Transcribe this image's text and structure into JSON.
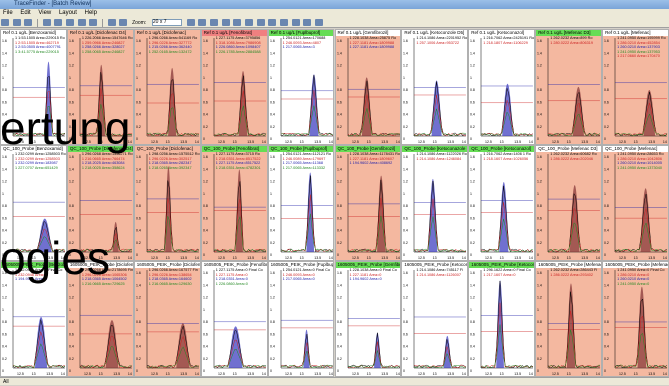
{
  "window": {
    "title": "TraceFinder - [Batch Review]"
  },
  "menu": [
    "File",
    "Edit",
    "View",
    "Layout",
    "Help"
  ],
  "toolbar": {
    "zoom_label": "Zoom:",
    "zoom_value": "20 x 7"
  },
  "overlay": {
    "line1": "ertung",
    "line2": "ogies"
  },
  "rows": [
    {
      "cells": [
        {
          "header": "Ref 0.1 ug/L [Benzoxamid]",
          "hdr_color": "#ffffff",
          "bg": "#ffffff",
          "info": [
            "1 1:53.1505 Area=229015 Ro",
            "1 2:53.1505 Area=462719",
            "1 2:53.0505 Area=4007791",
            "1 3:41.5775 Area=229015"
          ]
        },
        {
          "header": "Ref 0.1 ug/L [Diclofenac D4]",
          "hdr_color": "#f4b8a0",
          "bg": "#f4b8a0",
          "info": [
            "1 226.2066 Area=1547646 Ro",
            "1 259.0966 Area=246827",
            "1 258.0266 Area=328027",
            "1 258.0065 Area=246827"
          ]
        },
        {
          "header": "Ref 0.1 ug/L [Diclofenac]",
          "hdr_color": "#f4b8a0",
          "bg": "#f4b8a0",
          "info": [
            "1 296.0266 Area=541169 Ro",
            "1 296.0226 Area=327772",
            "1 215.0266 Area=362440",
            "1 252.0165 Area=132472"
          ]
        },
        {
          "header": "Ref 0.1 ug/L [Fenofibrat]",
          "hdr_color": "#f08080",
          "bg": "#f4b8a0",
          "info": [
            "1 227.1175 Area=3795856",
            "1 318.1086 Area=7986908",
            "1 226.0860 Area=1098407",
            "1 226.1785 Area=2884588"
          ]
        },
        {
          "header": "Ref 0.1 ug/L [Fuplbuprof]",
          "hdr_color": "#66dd55",
          "bg": "#ffffff",
          "info": [
            "1 254.0121 Area=170688",
            "1 246.0093 Area=4807",
            "1 217.0065 Area=3"
          ]
        },
        {
          "header": "Ref 0.1 ug/L [Gemfibrozil]",
          "hdr_color": "#ffffff",
          "bg": "#f4b8a0",
          "info": [
            "1 228.1038 Area=25875 Ro",
            "1 227.1181 Area=1809988",
            "1 227.1181 Area=1809988"
          ]
        },
        {
          "header": "Ref 0.1 ug/L [Ketoconzole D5]",
          "hdr_color": "#ffffff",
          "bg": "#ffffff",
          "info": [
            "1 214.1086 Area=2201952 Ro",
            "1 257.1006 Area=953722"
          ]
        },
        {
          "header": "Ref 0.1 ug/L [Ketoconazol]",
          "hdr_color": "#ffffff",
          "bg": "#ffffff",
          "info": [
            "1 216.7062 Area=2425191 Ro",
            "1 218.1807 Area=1106229"
          ]
        },
        {
          "header": "Ref 0.1 ug/L [Mefenac D3]",
          "hdr_color": "#66dd55",
          "bg": "#f4b8a0",
          "info": [
            "1 262.0232 Area=899 Ro",
            "1 280.0222 Area=806319"
          ]
        },
        {
          "header": "Ref 0.1 ug/L [Mefenac]",
          "hdr_color": "#ffffff",
          "bg": "#f4b8a0",
          "info": [
            "1 241.0950 Area=195999 Ro",
            "1 286.0210 Area=452854",
            "1 260.0210 Area=137903",
            "1 241.0950 Area=137953",
            "1 217.0660 Area=170470"
          ]
        }
      ]
    },
    {
      "cells": [
        {
          "header": "QC_100_Probe [Benzoxamid]",
          "hdr_color": "#ffffff",
          "bg": "#ffffff",
          "info": [
            "1 232.0299 Area=1258503 Ro",
            "1 232.0299 Area=1258503",
            "1 232.0299 Area=183987",
            "1 227.0707 Area=651429"
          ]
        },
        {
          "header": "QC_100_Probe [Diclofenac D4]",
          "hdr_color": "#66dd55",
          "bg": "#f4b8a0",
          "info": [
            "1 296.0268 Area=1556271 Ro",
            "1 216.0665 Area=766474",
            "1 218.2025 Area=463084",
            "1 218.0025 Area=358624"
          ]
        },
        {
          "header": "QC_100_Probe [Diclofenac]",
          "hdr_color": "#f4b8a0",
          "bg": "#f4b8a0",
          "info": [
            "1 298.0256 Area=1575512 Ro",
            "1 296.0226 Area=302517",
            "1 218.0365 Area=282347",
            "1 218.0265 Area=392347"
          ]
        },
        {
          "header": "QC_100_Probe [Fenofibrat]",
          "hdr_color": "#66dd55",
          "bg": "#f4b8a0",
          "info": [
            "1 227.1175 Area=3715 Ro",
            "1 218.0351 Area=8517522",
            "1 227.1175 Area=8517522",
            "1 218.0351 Area=4782301"
          ]
        },
        {
          "header": "QC_100_Probe [Fuplbuprof]",
          "hdr_color": "#66dd55",
          "bg": "#ffffff",
          "info": [
            "1 254.0121 Area=112121 Ro",
            "1 246.0089 Area=179697",
            "1 217.0065 Area=11368",
            "1 217.0065 Area=113332"
          ]
        },
        {
          "header": "QC_100_Probe [Gemfibrozil]",
          "hdr_color": "#66dd55",
          "bg": "#f4b8a0",
          "info": [
            "1 228.1038 Area=1178431 Ro",
            "1 227.1181 Area=1809607",
            "1 194.9602 Area=408692"
          ]
        },
        {
          "header": "QC_100_Probe [Ketoconazole D5]",
          "hdr_color": "#66dd55",
          "bg": "#ffffff",
          "info": [
            "1 214.1086 Area=1122026 Ro",
            "1 214.1086 Area=1246084"
          ]
        },
        {
          "header": "QC_100_Probe [Ketoconazol]",
          "hdr_color": "#66dd55",
          "bg": "#ffffff",
          "info": [
            "1 216.7062 Area=1406 1 Ro",
            "1 218.1607 Area=1026056"
          ]
        },
        {
          "header": "QC_100_Probe [Mefenac D3]",
          "hdr_color": "#ffffff",
          "bg": "#f4b8a0",
          "info": [
            "1 262.0232 Area=60682 Ro",
            "1 286.0222 Area=202046"
          ]
        },
        {
          "header": "QC_100_Probe [Mefenac]",
          "hdr_color": "#ffffff",
          "bg": "#f4b8a0",
          "info": [
            "1 241.0950 Area=28653 Ro",
            "1 286.0210 Area=1042806",
            "1 260.0210 Area=1014005",
            "1 241.0950 Area=1373040"
          ]
        }
      ]
    },
    {
      "cells": [
        {
          "header": "1605005_PEIK_Probe [Benzoxamid]",
          "hdr_color": "#66dd55",
          "bg": "#ffffff",
          "info": [
            "1 232.0946 Area=0 Final Co",
            "1 232.0946 Area=3",
            "1 194.9509 Area=0"
          ]
        },
        {
          "header": "1605005_PEIK_Probe [Diclofenac D4]",
          "hdr_color": "#ffffff",
          "bg": "#f4b8a0",
          "info": [
            "1 296.0268 Area=2178695 Fin",
            "1 296.0226 Area=1065306",
            "1 218.0365 Area=1064502",
            "1 216.0665 Area=729625"
          ]
        },
        {
          "header": "1605005_PEIK_Probe [Diclofenac]",
          "hdr_color": "#ffffff",
          "bg": "#f4b8a0",
          "info": [
            "1 296.0266 Area=167577 Fin",
            "1 296.0226 Area=138654",
            "1 218.0365 Area=164602",
            "1 216.0665 Area=129630"
          ]
        },
        {
          "header": "1605005_PEIK_Probe [Fenofibrat]",
          "hdr_color": "#ffffff",
          "bg": "#ffffff",
          "info": [
            "1 227.1175 Area=0 Final Co",
            "1 227.1175 Area=0",
            "1 218.0351 Area=0",
            "1 226.0860 Area=0"
          ]
        },
        {
          "header": "1605005_PEIK_Probe [Fuplbuprof]",
          "hdr_color": "#ffffff",
          "bg": "#ffffff",
          "info": [
            "1 254.0121 Area=0 Final Co",
            "1 246.0093 Area=0",
            "1 217.0065 Area=0"
          ]
        },
        {
          "header": "1605005_PEIK_Probe [Gemfibrozil]",
          "hdr_color": "#66dd55",
          "bg": "#ffffff",
          "info": [
            "1 228.1038 Area=0 Final Co",
            "1 227.1181 Area=0",
            "1 194.9602 Area=0"
          ]
        },
        {
          "header": "1605005_PEIK_Probe [Ketoconazole D5]",
          "hdr_color": "#ffffff",
          "bg": "#ffffff",
          "info": [
            "1 214.1086 Area=745117 Fi",
            "1 214.1086 Area=1126007"
          ]
        },
        {
          "header": "1605005_PEIK_Probe [Ketoconazol]",
          "hdr_color": "#66dd55",
          "bg": "#ffffff",
          "info": [
            "1 296.1622 Area=0 Final Co",
            "1 217.1607 Area=0"
          ]
        },
        {
          "header": "1605005_PEIK_Probe [Mefenac D3]",
          "hdr_color": "#ffffff",
          "bg": "#f4b8a0",
          "info": [
            "1 262.0232 Area=286443 Fi",
            "1 286.0222 Area=293402"
          ]
        },
        {
          "header": "1605005_PEIK_Probe [Mefenac]",
          "hdr_color": "#ffffff",
          "bg": "#f4b8a0",
          "info": [
            "1 241.0950 Area=0 Final Co",
            "1 286.0210 Area=0",
            "1 260.0210 Area=0",
            "1 241.0950 Area=0"
          ]
        }
      ]
    }
  ],
  "axis": {
    "ticks": [
      "12.5",
      "13",
      "13.5",
      "14"
    ],
    "y_labels": [
      "1.6",
      "1.4",
      "1.2",
      "1",
      "0.8",
      "0.6",
      "0.4",
      "0.2",
      "0"
    ]
  },
  "colors": {
    "ms1": "#2222aa",
    "ms2": "#cc2222",
    "ms3": "#228822",
    "ms4": "#000000",
    "fill": "#4040c0"
  },
  "statusbar": {
    "text": "All"
  }
}
